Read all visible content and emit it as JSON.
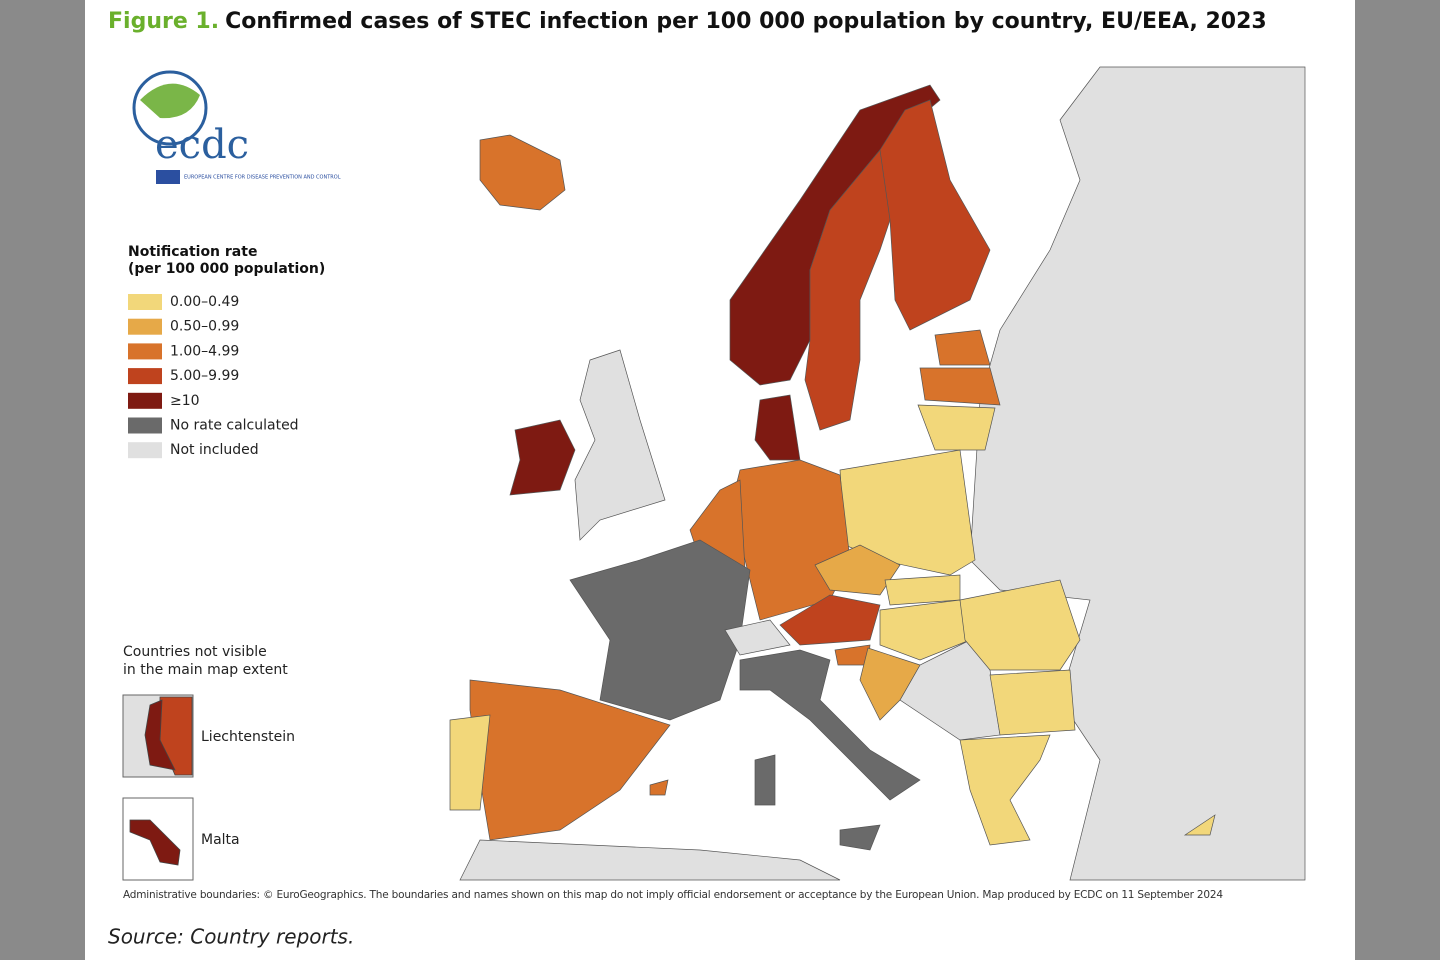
{
  "figure_label": "Figure 1.",
  "title": "Confirmed cases of STEC infection per 100 000 population by country, EU/EEA, 2023",
  "logo": {
    "name": "ecdc",
    "text": "EUROPEAN CENTRE FOR DISEASE PREVENTION AND CONTROL"
  },
  "legend": {
    "title_lines": [
      "Notification rate",
      "(per 100 000 population)"
    ],
    "items": [
      {
        "label": "0.00–0.49",
        "color": "#f2d77a"
      },
      {
        "label": "0.50–0.99",
        "color": "#e6a948"
      },
      {
        "label": "1.00–4.99",
        "color": "#d8732b"
      },
      {
        "label": "5.00–9.99",
        "color": "#bf431e"
      },
      {
        "label": "≥10",
        "color": "#7e1a12"
      },
      {
        "label": "No rate calculated",
        "color": "#6a6a6a"
      },
      {
        "label": "Not included",
        "color": "#e0e0e0"
      }
    ]
  },
  "inset": {
    "title_lines": [
      "Countries not visible",
      "in the main map extent"
    ],
    "countries": [
      "Liechtenstein",
      "Malta"
    ]
  },
  "disclaimer": "Administrative boundaries: © EuroGeographics. The boundaries and names shown on this map do not imply official endorsement or acceptance by the European Union. Map produced by ECDC on 11 September 2024",
  "source": "Source: Country reports."
}
